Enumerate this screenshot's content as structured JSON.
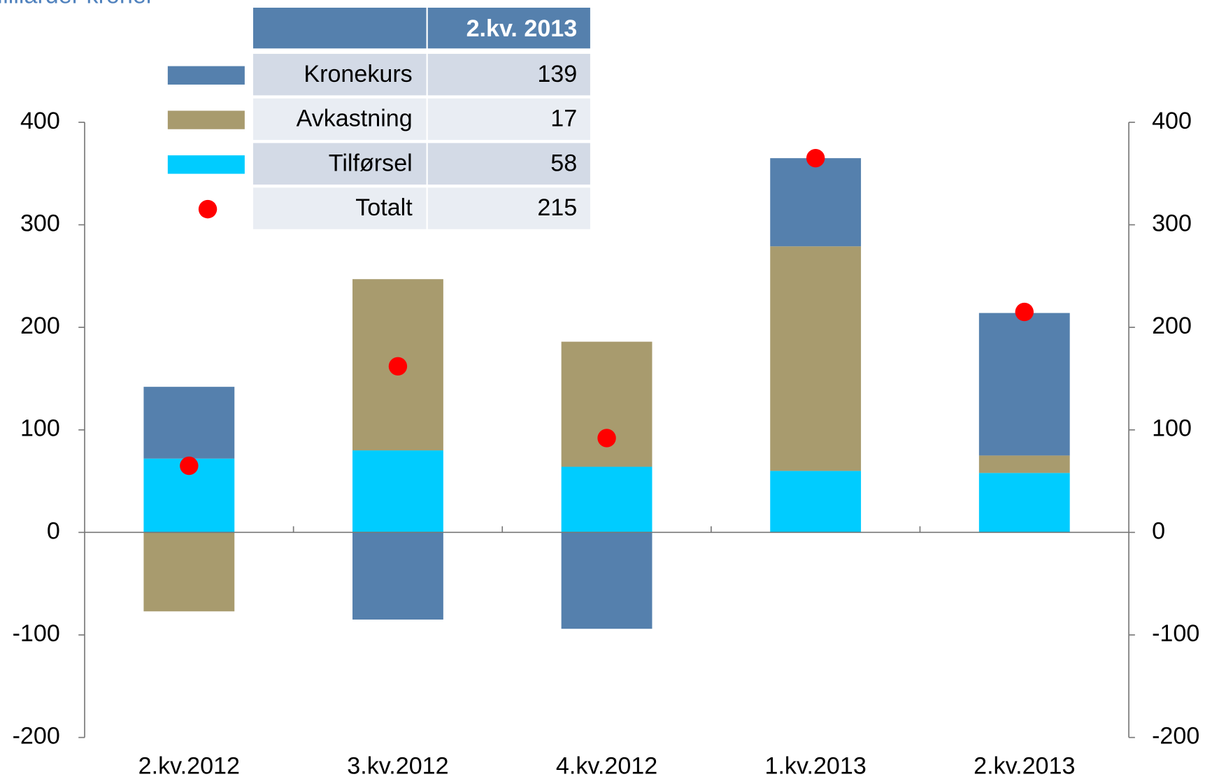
{
  "chart_data": {
    "type": "bar",
    "stacked": true,
    "title": "Milliarder kroner",
    "categories": [
      "2.kv.2012",
      "3.kv.2012",
      "4.kv.2012",
      "1.kv.2013",
      "2.kv.2013"
    ],
    "series": [
      {
        "name": "Kronekurs",
        "color": "#5580ad",
        "values": [
          70,
          -85,
          -94,
          86,
          139
        ]
      },
      {
        "name": "Avkastning",
        "color": "#a89b6e",
        "values": [
          -77,
          167,
          122,
          219,
          17
        ]
      },
      {
        "name": "Tilførsel",
        "color": "#00ccff",
        "values": [
          72,
          80,
          64,
          60,
          58
        ]
      },
      {
        "name": "Totalt",
        "color": "#ff0000",
        "type": "scatter",
        "values": [
          65,
          162,
          92,
          365,
          215
        ]
      }
    ],
    "table_header": "2.kv. 2013",
    "ylim": [
      -200,
      400
    ],
    "yticks": [
      -200,
      -100,
      0,
      100,
      200,
      300,
      400
    ],
    "y2lim": [
      -200,
      400
    ],
    "y2ticks": [
      -200,
      -100,
      0,
      100,
      200,
      300,
      400
    ]
  }
}
